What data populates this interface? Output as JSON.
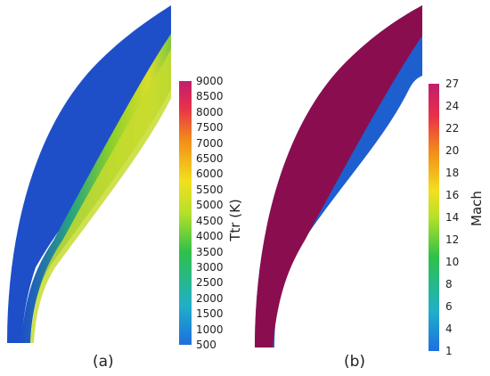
{
  "panels": [
    {
      "caption": "(a)",
      "colorbar_title": "Ttr (K)",
      "ticks": [
        "9000",
        "8500",
        "8000",
        "7500",
        "7000",
        "6500",
        "6000",
        "5500",
        "5000",
        "4500",
        "4000",
        "3500",
        "3000",
        "2500",
        "2000",
        "1500",
        "1000",
        "500"
      ]
    },
    {
      "caption": "(b)",
      "colorbar_title": "Mach",
      "ticks": [
        "27",
        "24",
        "22",
        "20",
        "18",
        "16",
        "14",
        "12",
        "10",
        "8",
        "6",
        "4",
        "1"
      ]
    }
  ],
  "colors": {
    "freestream_blue": "#1e4fc8",
    "shock_layer_magenta": "#8a0e4f",
    "shock_green": "#8ccf2a",
    "shock_yellow": "#d9de2a"
  }
}
